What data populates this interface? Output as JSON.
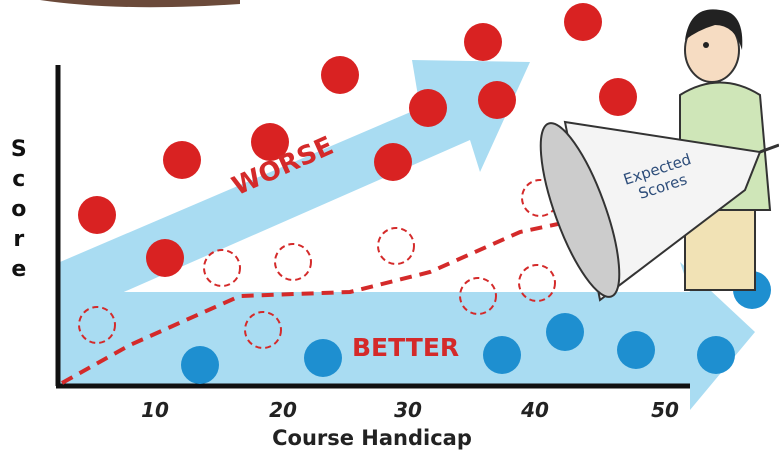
{
  "axis": {
    "y_label": "Score",
    "x_label": "Course Handicap",
    "x_ticks": [
      "10",
      "20",
      "30",
      "40",
      "50"
    ]
  },
  "labels": {
    "worse": "WORSE",
    "better": "BETTER",
    "megaphone": "Expected Scores"
  }
}
